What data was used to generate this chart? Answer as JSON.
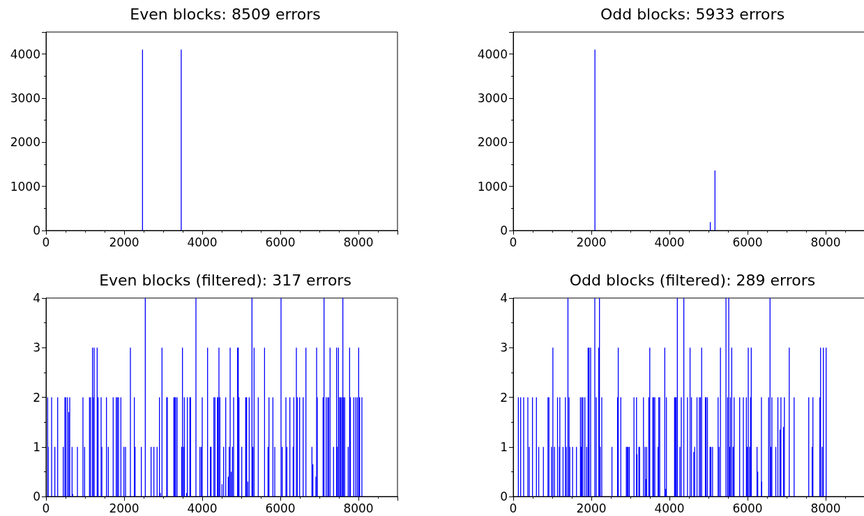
{
  "chart_data": [
    {
      "type": "bar",
      "title": "Even blocks: 8509 errors",
      "color": "#0000ff",
      "xlim": [
        0,
        9000
      ],
      "xticks": [
        0,
        2000,
        4000,
        6000,
        8000
      ],
      "ylim": [
        0,
        4500
      ],
      "yticks": [
        0,
        1000,
        2000,
        3000,
        4000
      ],
      "x": [
        2471,
        3462
      ],
      "values": [
        4100,
        4100
      ]
    },
    {
      "type": "bar",
      "title": "Odd blocks: 5933 errors",
      "color": "#0000ff",
      "xlim": [
        0,
        9000
      ],
      "xticks": [
        0,
        2000,
        4000,
        6000,
        8000
      ],
      "ylim": [
        0,
        4500
      ],
      "yticks": [
        0,
        1000,
        2000,
        3000,
        4000
      ],
      "x": [
        2092,
        5046,
        5166
      ],
      "values": [
        4100,
        190,
        1360
      ]
    },
    {
      "type": "bar",
      "title": "Even blocks (filtered): 317 errors",
      "color": "#0000ff",
      "xlim": [
        0,
        9000
      ],
      "xticks": [
        0,
        2000,
        4000,
        6000,
        8000
      ],
      "ylim": [
        0,
        4
      ],
      "yticks": [
        0,
        1,
        2,
        3,
        4
      ],
      "x": [
        42,
        54,
        143,
        226,
        298,
        440,
        482,
        506,
        548,
        583,
        607,
        667,
        685,
        804,
        946,
        988,
        1113,
        1143,
        1190,
        1214,
        1232,
        1310,
        1333,
        1411,
        1429,
        1548,
        1595,
        1720,
        1792,
        1798,
        1827,
        1857,
        1917,
        1994,
        2036,
        2161,
        2262,
        2280,
        2440,
        2542,
        2690,
        2762,
        2845,
        2905,
        2928,
        2970,
        3089,
        3107,
        3274,
        3298,
        3321,
        3357,
        3476,
        3494,
        3524,
        3541,
        3601,
        3619,
        3684,
        3702,
        3839,
        3940,
        3976,
        4000,
        4137,
        4208,
        4226,
        4298,
        4327,
        4387,
        4405,
        4428,
        4452,
        4506,
        4548,
        4602,
        4667,
        4691,
        4715,
        4744,
        4774,
        4804,
        4905,
        4923,
        4941,
        5012,
        5113,
        5137,
        5167,
        5203,
        5274,
        5298,
        5328,
        5435,
        5596,
        5685,
        5709,
        5810,
        5857,
        6018,
        6048,
        6143,
        6167,
        6244,
        6328,
        6346,
        6411,
        6435,
        6494,
        6584,
        6655,
        6810,
        6834,
        6911,
        6929,
        6947,
        7095,
        7119,
        7173,
        7215,
        7238,
        7274,
        7363,
        7441,
        7459,
        7488,
        7518,
        7542,
        7572,
        7601,
        7619,
        7649,
        7738,
        7774,
        7792,
        7881,
        7929,
        7971,
        8006,
        8030,
        8089
      ],
      "values": [
        2,
        1,
        2,
        1,
        2,
        1,
        2,
        2,
        2,
        1.7,
        2,
        1,
        0.05,
        1,
        2,
        1,
        2,
        2,
        3,
        2,
        3,
        3,
        2,
        2,
        1,
        2,
        1,
        2,
        null,
        2,
        2,
        2,
        2,
        1,
        1,
        3,
        2,
        1,
        1,
        4,
        1,
        1,
        1,
        2,
        0.07,
        3,
        2,
        2,
        2,
        2,
        2,
        2,
        1,
        3,
        1,
        2,
        0.07,
        2,
        2,
        2,
        4,
        1,
        1,
        2,
        3,
        1,
        1,
        2,
        2,
        2,
        2,
        3,
        2,
        0.25,
        1,
        2,
        0.4,
        1,
        3,
        0.5,
        1,
        2,
        3,
        3,
        2,
        1,
        2,
        2,
        0.3,
        2,
        4,
        1,
        3,
        2,
        3,
        1,
        2,
        2,
        1,
        4,
        1,
        2,
        1,
        2,
        1,
        2,
        3,
        2,
        2,
        2,
        3,
        1,
        0.65,
        0.4,
        3,
        2,
        2,
        4,
        2,
        2,
        2,
        3,
        1,
        3,
        1,
        3,
        2,
        2,
        2,
        4,
        2,
        2,
        1,
        3,
        2,
        2,
        2,
        2,
        3,
        2,
        2
      ]
    },
    {
      "type": "bar",
      "title": "Odd blocks (filtered): 289 errors",
      "color": "#0000ff",
      "xlim": [
        0,
        9000
      ],
      "xticks": [
        0,
        2000,
        4000,
        6000,
        8000
      ],
      "ylim": [
        0,
        4
      ],
      "yticks": [
        0,
        1,
        2,
        3,
        4
      ],
      "x": [
        131,
        190,
        267,
        374,
        410,
        493,
        594,
        653,
        772,
        890,
        914,
        979,
        1015,
        1056,
        1134,
        1181,
        1193,
        1276,
        1335,
        1359,
        1401,
        1430,
        1448,
        1519,
        1620,
        1721,
        1739,
        1757,
        1786,
        1834,
        1881,
        1917,
        1941,
        1982,
        2089,
        2125,
        2190,
        2208,
        2226,
        2267,
        2528,
        2671,
        2689,
        2754,
        2896,
        2920,
        2944,
        2973,
        3092,
        3157,
        3169,
        3217,
        3235,
        3335,
        3377,
        3395,
        3418,
        3472,
        3496,
        3573,
        3597,
        3626,
        3709,
        3727,
        3751,
        3881,
        3899,
        3922,
        4131,
        4154,
        4178,
        4202,
        4268,
        4303,
        4368,
        4451,
        4463,
        4528,
        4564,
        4623,
        4647,
        4706,
        4765,
        4795,
        4825,
        4920,
        4938,
        4973,
        5039,
        5062,
        5104,
        5246,
        5270,
        5306,
        5448,
        5490,
        5519,
        5543,
        5561,
        5596,
        5632,
        5656,
        5798,
        5893,
        5970,
        5994,
        6018,
        6053,
        6077,
        6095,
        6243,
        6261,
        6356,
        6362,
        6540,
        6576,
        6599,
        6623,
        6724,
        6777,
        6831,
        6855,
        6920,
        6944,
        7068,
        7193,
        7567,
        7656,
        7674,
        7852,
        7870,
        7911,
        7941,
        8012
      ],
      "values": [
        2,
        2,
        2,
        2,
        1,
        2,
        2,
        1,
        1,
        2,
        2,
        1,
        3,
        1,
        2,
        1,
        2,
        1,
        2,
        1,
        4,
        2,
        1,
        1,
        1,
        2,
        1,
        2,
        2,
        2,
        1,
        3,
        3,
        3,
        4,
        2,
        3,
        4,
        1,
        2,
        1,
        2,
        3,
        2,
        1,
        1,
        1,
        1,
        2,
        2,
        0.85,
        1,
        1,
        2,
        1,
        0.35,
        1,
        2,
        3,
        2,
        2,
        2,
        1,
        2,
        2,
        3,
        0.15,
        2,
        2,
        2,
        2,
        4,
        1,
        2,
        4,
        null,
        2,
        3,
        2,
        0.9,
        1,
        2,
        2,
        2,
        3,
        2,
        2,
        2,
        1,
        1,
        1,
        2,
        1,
        3,
        4,
        2,
        4,
        1,
        2,
        3,
        1,
        2,
        2,
        2,
        2,
        1,
        3,
        1,
        2,
        3,
        1,
        0.5,
        2,
        0.3,
        2,
        4,
        1,
        2,
        1,
        2,
        1.35,
        2,
        1.4,
        2,
        3,
        2,
        2,
        1,
        2,
        2,
        3,
        1,
        3,
        3
      ]
    }
  ]
}
